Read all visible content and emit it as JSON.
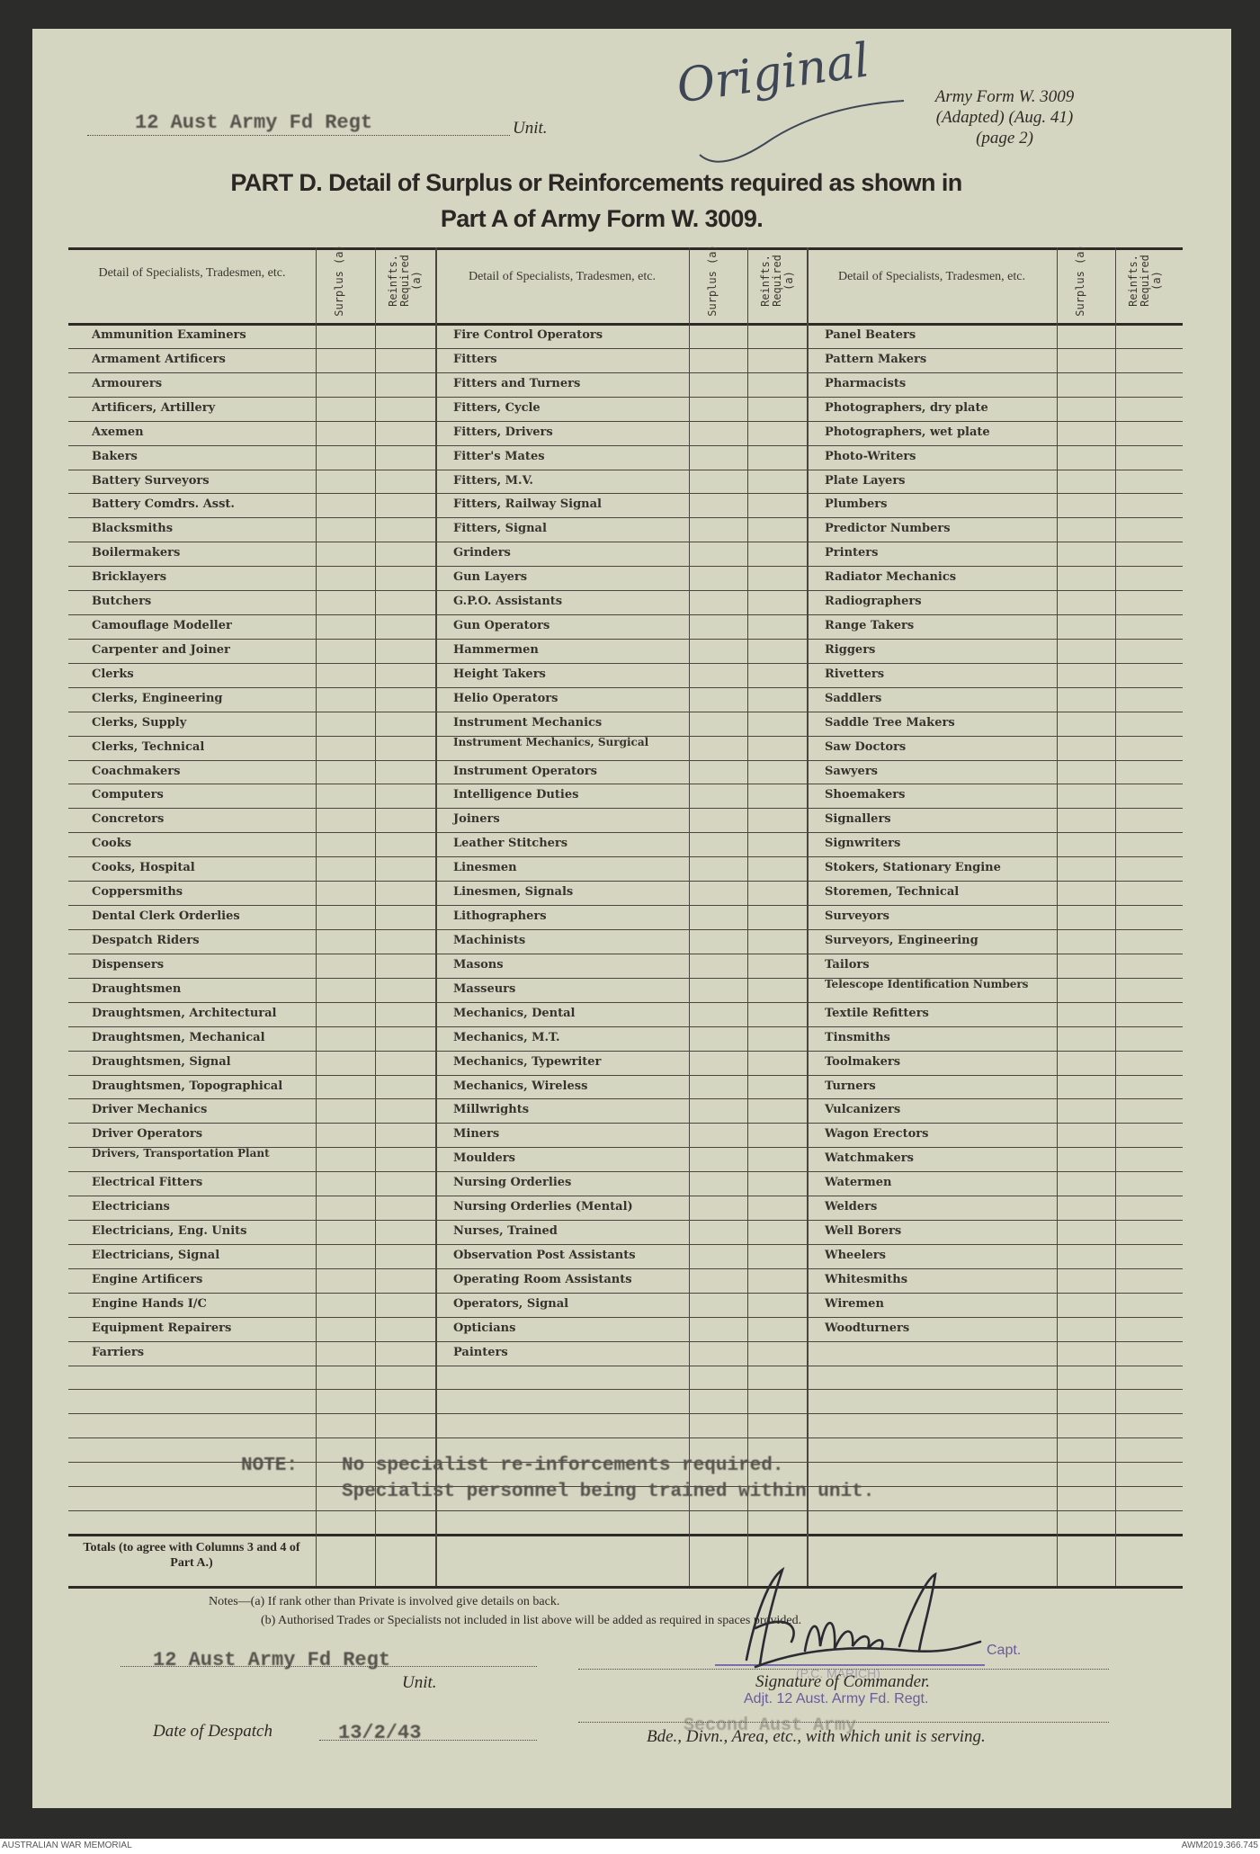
{
  "header": {
    "unit_value": "12 Aust Army Fd Regt",
    "unit_label": "Unit.",
    "handwritten_note": "Original",
    "form_ref": [
      "Army Form W. 3009",
      "(Adapted) (Aug. 41)",
      "(page 2)"
    ],
    "title_line1": "PART D.  Detail of Surplus or Reinforcements required as shown in",
    "title_line2": "Part A of Army Form W. 3009."
  },
  "table": {
    "col_headers": {
      "detail": "Detail of Specialists, Tradesmen, etc.",
      "surplus": "Surplus (a)",
      "reinfts": "Reinfts. Required (a)"
    },
    "columns": [
      [
        "Ammunition Examiners",
        "Armament Artificers",
        "Armourers",
        "Artificers, Artillery",
        "Axemen",
        "Bakers",
        "Battery Surveyors",
        "Battery Comdrs. Asst.",
        "Blacksmiths",
        "Boilermakers",
        "Bricklayers",
        "Butchers",
        "Camouflage Modeller",
        "Carpenter and Joiner",
        "Clerks",
        "Clerks, Engineering",
        "Clerks, Supply",
        "Clerks, Technical",
        "Coachmakers",
        "Computers",
        "Concretors",
        "Cooks",
        "Cooks, Hospital",
        "Coppersmiths",
        "Dental Clerk Orderlies",
        "Despatch Riders",
        "Dispensers",
        "Draughtsmen",
        "Draughtsmen, Architectural",
        "Draughtsmen, Mechanical",
        "Draughtsmen, Signal",
        "Draughtsmen, Topographical",
        "Driver Mechanics",
        "Driver Operators",
        "Drivers, Transportation Plant",
        "Electrical Fitters",
        "Electricians",
        "Electricians, Eng. Units",
        "Electricians, Signal",
        "Engine Artificers",
        "Engine Hands I/C",
        "Equipment Repairers",
        "Farriers"
      ],
      [
        "Fire Control Operators",
        "Fitters",
        "Fitters and Turners",
        "Fitters, Cycle",
        "Fitters, Drivers",
        "Fitter's Mates",
        "Fitters, M.V.",
        "Fitters, Railway Signal",
        "Fitters, Signal",
        "Grinders",
        "Gun Layers",
        "G.P.O. Assistants",
        "Gun Operators",
        "Hammermen",
        "Height Takers",
        "Helio Operators",
        "Instrument Mechanics",
        "Instrument Mechanics, Surgical",
        "Instrument Operators",
        "Intelligence Duties",
        "Joiners",
        "Leather Stitchers",
        "Linesmen",
        "Linesmen, Signals",
        "Lithographers",
        "Machinists",
        "Masons",
        "Masseurs",
        "Mechanics, Dental",
        "Mechanics, M.T.",
        "Mechanics, Typewriter",
        "Mechanics, Wireless",
        "Millwrights",
        "Miners",
        "Moulders",
        "Nursing Orderlies",
        "Nursing Orderlies (Mental)",
        "Nurses, Trained",
        "Observation Post Assistants",
        "Operating Room Assistants",
        "Operators, Signal",
        "Opticians",
        "Painters"
      ],
      [
        "Panel Beaters",
        "Pattern Makers",
        "Pharmacists",
        "Photographers, dry plate",
        "Photographers, wet plate",
        "Photo-Writers",
        "Plate Layers",
        "Plumbers",
        "Predictor Numbers",
        "Printers",
        "Radiator Mechanics",
        "Radiographers",
        "Range Takers",
        "Riggers",
        "Rivetters",
        "Saddlers",
        "Saddle Tree Makers",
        "Saw Doctors",
        "Sawyers",
        "Shoemakers",
        "Signallers",
        "Signwriters",
        "Stokers, Stationary Engine",
        "Storemen, Technical",
        "Surveyors",
        "Surveyors, Engineering",
        "Tailors",
        "Telescope Identification Numbers",
        "Textile Refitters",
        "Tinsmiths",
        "Toolmakers",
        "Turners",
        "Vulcanizers",
        "Wagon Erectors",
        "Watchmakers",
        "Watermen",
        "Welders",
        "Well Borers",
        "Wheelers",
        "Whitesmiths",
        "Wiremen",
        "Woodturners"
      ]
    ],
    "note_label": "NOTE:",
    "note_line1": "No specialist re-inforcements required.",
    "note_line2": "Specialist personnel being trained within unit.",
    "totals_label": "Totals (to agree with Columns 3 and 4 of Part A.)"
  },
  "notes": {
    "a": "Notes—(a) If rank other than Private is involved give details on back.",
    "b": "(b) Authorised Trades or Specialists not included in list above will be added as required in spaces provided."
  },
  "footer_fields": {
    "unit_value": "12 Aust Army Fd Regt",
    "unit_label": "Unit.",
    "rank": "Capt.",
    "name_stamp": "(P.C. MARICH)",
    "signature_label": "Signature of Commander.",
    "appointment_stamp": "Adjt. 12 Aust. Army Fd. Regt.",
    "date_label": "Date of Despatch",
    "date_value": "13/2/43",
    "formation_value": "Second Aust Army",
    "formation_label": "Bde., Divn., Area, etc., with which unit is serving.",
    "signature": "P C Marich"
  },
  "archive": {
    "left": "AUSTRALIAN WAR MEMORIAL",
    "right": "AWM2019.366.745"
  },
  "colors": {
    "paper": "#d5d6c1",
    "ink": "#2e2a25",
    "stamp": "#6a5b9c"
  }
}
